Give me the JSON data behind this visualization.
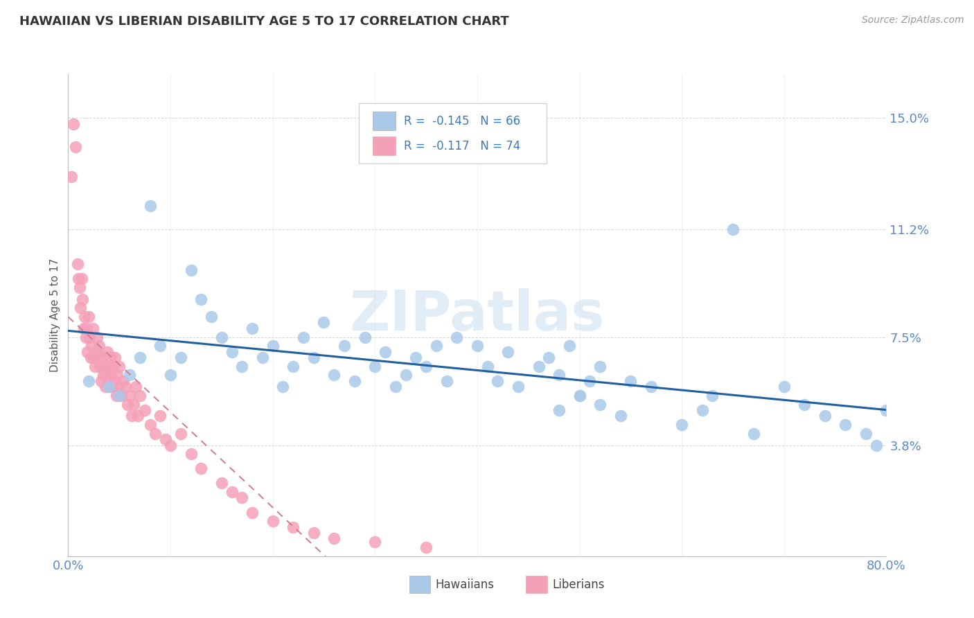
{
  "title": "HAWAIIAN VS LIBERIAN DISABILITY AGE 5 TO 17 CORRELATION CHART",
  "source_text": "Source: ZipAtlas.com",
  "ylabel": "Disability Age 5 to 17",
  "xlim": [
    0.0,
    0.8
  ],
  "ylim": [
    0.0,
    0.165
  ],
  "yticks": [
    0.038,
    0.075,
    0.112,
    0.15
  ],
  "ytick_labels": [
    "3.8%",
    "7.5%",
    "11.2%",
    "15.0%"
  ],
  "xtick_labels": [
    "0.0%",
    "80.0%"
  ],
  "xticks": [
    0.0,
    0.8
  ],
  "hawaiian_color": "#aac9e8",
  "liberian_color": "#f4a0b8",
  "hawaiian_line_color": "#2060a0",
  "liberian_line_color": "#d08090",
  "R_hawaiian": -0.145,
  "N_hawaiian": 66,
  "R_liberian": -0.117,
  "N_liberian": 74,
  "background_color": "#ffffff",
  "grid_color": "#cccccc",
  "title_color": "#333333",
  "axis_label_color": "#5a8ac6",
  "watermark": "ZIPatlas",
  "hawaiians_x": [
    0.02,
    0.04,
    0.05,
    0.06,
    0.07,
    0.08,
    0.09,
    0.1,
    0.11,
    0.12,
    0.13,
    0.14,
    0.15,
    0.16,
    0.17,
    0.18,
    0.19,
    0.2,
    0.21,
    0.22,
    0.23,
    0.24,
    0.25,
    0.26,
    0.27,
    0.28,
    0.29,
    0.3,
    0.31,
    0.32,
    0.33,
    0.34,
    0.35,
    0.36,
    0.37,
    0.38,
    0.4,
    0.41,
    0.42,
    0.43,
    0.44,
    0.46,
    0.47,
    0.48,
    0.49,
    0.5,
    0.51,
    0.52,
    0.54,
    0.48,
    0.5,
    0.52,
    0.55,
    0.57,
    0.6,
    0.62,
    0.63,
    0.65,
    0.67,
    0.7,
    0.72,
    0.74,
    0.76,
    0.78,
    0.79,
    0.8
  ],
  "hawaiians_y": [
    0.06,
    0.058,
    0.055,
    0.062,
    0.068,
    0.12,
    0.072,
    0.062,
    0.068,
    0.098,
    0.088,
    0.082,
    0.075,
    0.07,
    0.065,
    0.078,
    0.068,
    0.072,
    0.058,
    0.065,
    0.075,
    0.068,
    0.08,
    0.062,
    0.072,
    0.06,
    0.075,
    0.065,
    0.07,
    0.058,
    0.062,
    0.068,
    0.065,
    0.072,
    0.06,
    0.075,
    0.072,
    0.065,
    0.06,
    0.07,
    0.058,
    0.065,
    0.068,
    0.062,
    0.072,
    0.055,
    0.06,
    0.065,
    0.048,
    0.05,
    0.055,
    0.052,
    0.06,
    0.058,
    0.045,
    0.05,
    0.055,
    0.112,
    0.042,
    0.058,
    0.052,
    0.048,
    0.045,
    0.042,
    0.038,
    0.05
  ],
  "liberians_x": [
    0.003,
    0.005,
    0.007,
    0.009,
    0.01,
    0.011,
    0.012,
    0.013,
    0.014,
    0.015,
    0.016,
    0.017,
    0.018,
    0.019,
    0.02,
    0.021,
    0.022,
    0.023,
    0.024,
    0.025,
    0.026,
    0.027,
    0.028,
    0.029,
    0.03,
    0.031,
    0.032,
    0.033,
    0.034,
    0.035,
    0.036,
    0.037,
    0.038,
    0.039,
    0.04,
    0.041,
    0.042,
    0.043,
    0.044,
    0.045,
    0.046,
    0.047,
    0.048,
    0.049,
    0.05,
    0.052,
    0.054,
    0.056,
    0.058,
    0.06,
    0.062,
    0.064,
    0.066,
    0.068,
    0.07,
    0.075,
    0.08,
    0.085,
    0.09,
    0.095,
    0.1,
    0.11,
    0.12,
    0.13,
    0.15,
    0.16,
    0.17,
    0.18,
    0.2,
    0.22,
    0.24,
    0.26,
    0.3,
    0.35
  ],
  "liberians_y": [
    0.13,
    0.148,
    0.14,
    0.1,
    0.095,
    0.092,
    0.085,
    0.095,
    0.088,
    0.078,
    0.082,
    0.075,
    0.078,
    0.07,
    0.082,
    0.075,
    0.068,
    0.072,
    0.078,
    0.068,
    0.065,
    0.07,
    0.075,
    0.068,
    0.072,
    0.065,
    0.06,
    0.068,
    0.062,
    0.065,
    0.058,
    0.062,
    0.07,
    0.065,
    0.058,
    0.068,
    0.062,
    0.058,
    0.065,
    0.06,
    0.068,
    0.055,
    0.062,
    0.058,
    0.065,
    0.055,
    0.06,
    0.058,
    0.052,
    0.055,
    0.048,
    0.052,
    0.058,
    0.048,
    0.055,
    0.05,
    0.045,
    0.042,
    0.048,
    0.04,
    0.038,
    0.042,
    0.035,
    0.03,
    0.025,
    0.022,
    0.02,
    0.015,
    0.012,
    0.01,
    0.008,
    0.006,
    0.005,
    0.003
  ]
}
